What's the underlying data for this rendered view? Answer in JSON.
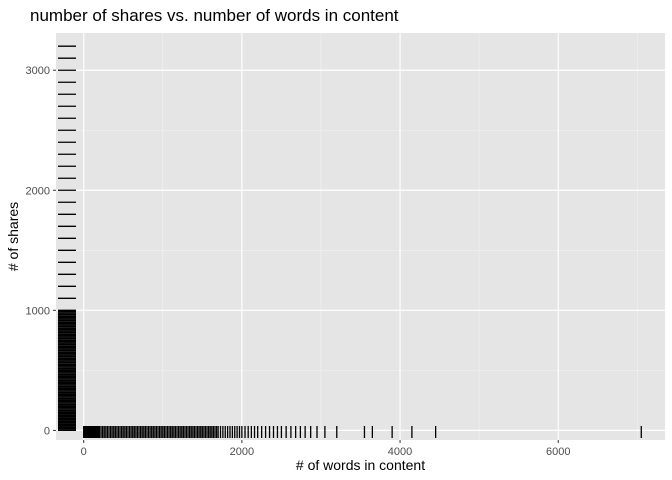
{
  "chart_data": {
    "type": "rug",
    "title": "number of shares vs. number of words in content",
    "xlabel": "# of words in content",
    "ylabel": "# of shares",
    "xlim": [
      -350,
      7350
    ],
    "ylim": [
      -80,
      3310
    ],
    "x_ticks": [
      0,
      2000,
      4000,
      6000
    ],
    "y_ticks": [
      0,
      1000,
      2000,
      3000
    ],
    "grid": true,
    "panel_background": "#e5e5e5",
    "grid_color": "#ffffff",
    "rug_color": "#000000",
    "x_rug_values": [
      0,
      5,
      10,
      15,
      20,
      25,
      30,
      35,
      40,
      45,
      50,
      60,
      70,
      80,
      90,
      100,
      110,
      120,
      130,
      140,
      150,
      160,
      170,
      180,
      190,
      200,
      220,
      240,
      260,
      280,
      300,
      320,
      340,
      360,
      380,
      400,
      420,
      440,
      460,
      480,
      500,
      520,
      540,
      560,
      580,
      600,
      620,
      640,
      660,
      680,
      700,
      720,
      740,
      760,
      780,
      800,
      820,
      840,
      860,
      880,
      900,
      920,
      940,
      960,
      980,
      1000,
      1020,
      1040,
      1060,
      1080,
      1100,
      1120,
      1140,
      1160,
      1180,
      1200,
      1220,
      1240,
      1260,
      1280,
      1300,
      1320,
      1340,
      1360,
      1380,
      1400,
      1420,
      1440,
      1460,
      1480,
      1500,
      1520,
      1540,
      1560,
      1580,
      1600,
      1620,
      1640,
      1660,
      1680,
      1700,
      1730,
      1760,
      1790,
      1820,
      1850,
      1880,
      1910,
      1940,
      1970,
      2000,
      2040,
      2080,
      2120,
      2160,
      2200,
      2250,
      2300,
      2350,
      2400,
      2450,
      2500,
      2560,
      2620,
      2680,
      2740,
      2800,
      2870,
      2950,
      3050,
      3200,
      3550,
      3650,
      3900,
      4150,
      4450,
      7050
    ],
    "y_rug_values": [
      0,
      10,
      20,
      30,
      40,
      50,
      60,
      70,
      80,
      90,
      100,
      110,
      120,
      130,
      140,
      150,
      160,
      170,
      180,
      190,
      200,
      210,
      220,
      230,
      240,
      250,
      260,
      270,
      280,
      290,
      300,
      310,
      320,
      330,
      340,
      350,
      360,
      370,
      380,
      390,
      400,
      410,
      420,
      430,
      440,
      450,
      460,
      470,
      480,
      490,
      500,
      510,
      520,
      530,
      540,
      550,
      560,
      570,
      580,
      590,
      600,
      610,
      620,
      630,
      640,
      650,
      660,
      670,
      680,
      690,
      700,
      710,
      720,
      730,
      740,
      750,
      760,
      770,
      780,
      790,
      800,
      810,
      820,
      830,
      840,
      850,
      860,
      870,
      880,
      890,
      900,
      910,
      920,
      930,
      940,
      950,
      960,
      970,
      980,
      990,
      1000,
      1100,
      1200,
      1300,
      1400,
      1500,
      1600,
      1700,
      1800,
      1900,
      2000,
      2100,
      2200,
      2300,
      2400,
      2500,
      2600,
      2700,
      2800,
      2900,
      3000,
      3100,
      3200
    ]
  }
}
